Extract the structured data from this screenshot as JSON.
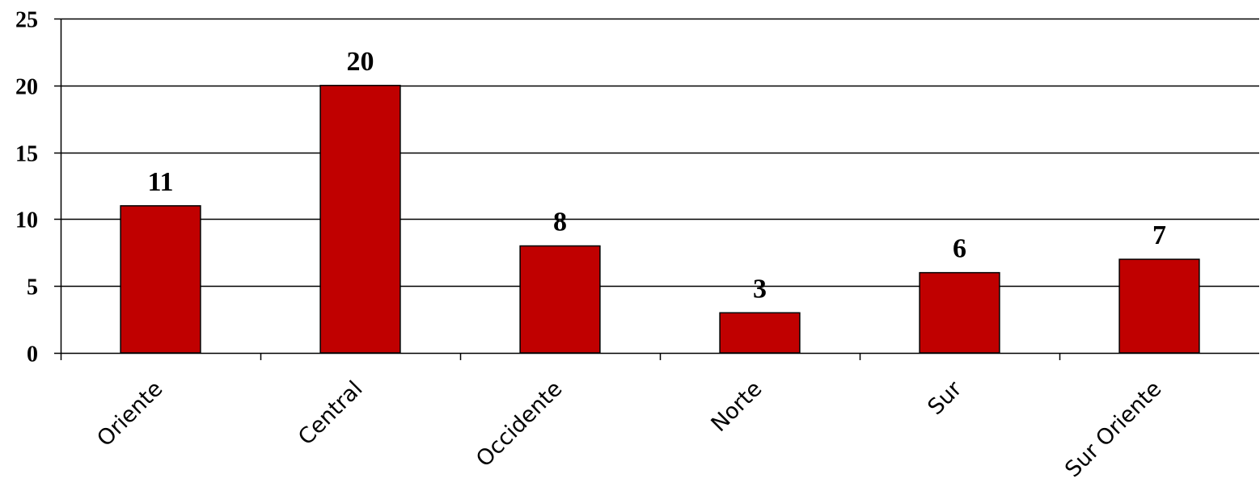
{
  "chart_data": {
    "type": "bar",
    "title": "",
    "xlabel": "",
    "ylabel": "",
    "categories": [
      "Oriente",
      "Central",
      "Occidente",
      "Norte",
      "Sur",
      "Sur Oriente"
    ],
    "values": [
      11,
      20,
      8,
      3,
      6,
      7
    ],
    "data_labels": [
      "11",
      "20",
      "8",
      "3",
      "6",
      "7"
    ],
    "ylim": [
      0,
      25
    ],
    "yticks": [
      0,
      5,
      10,
      15,
      20,
      25
    ],
    "ytick_labels": [
      "0",
      "5",
      "10",
      "15",
      "20",
      "25"
    ],
    "grid": true,
    "legend": "none",
    "bar_color": "#C00000",
    "bar_edge_color": "#000000"
  }
}
